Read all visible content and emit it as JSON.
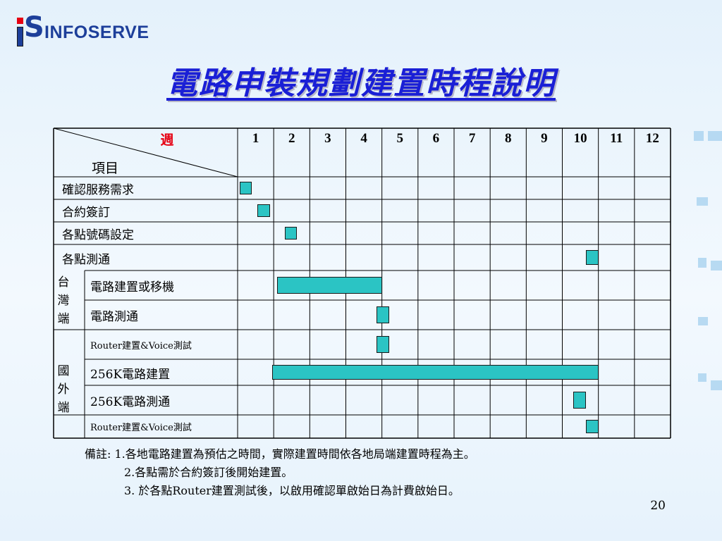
{
  "logo": {
    "text": "INFOSERVE"
  },
  "title": "電路申裝規劃建置時程說明",
  "table": {
    "header_week": "週",
    "header_item": "項目",
    "weeks": [
      "1",
      "2",
      "3",
      "4",
      "5",
      "6",
      "7",
      "8",
      "9",
      "10",
      "11",
      "12"
    ],
    "rows": [
      {
        "label": "確認服務需求",
        "group": "",
        "small": false
      },
      {
        "label": "合約簽訂",
        "group": "",
        "small": false
      },
      {
        "label": "各點號碼設定",
        "group": "",
        "small": false
      },
      {
        "label": "各點測通",
        "group": "",
        "small": false
      },
      {
        "label": "電路建置或移機",
        "group": "taiwan",
        "small": false
      },
      {
        "label": "電路測通",
        "group": "taiwan",
        "small": false
      },
      {
        "label": "Router建置&Voice測試",
        "group": "taiwan",
        "small": true
      },
      {
        "label": "256K電路建置",
        "group": "foreign",
        "small": false
      },
      {
        "label": "256K電路測通",
        "group": "foreign",
        "small": false
      },
      {
        "label": "Router建置&Voice測試",
        "group": "foreign",
        "small": true
      }
    ],
    "groups": {
      "taiwan": [
        "台",
        "灣",
        "端"
      ],
      "foreign": [
        "國",
        "外",
        "端"
      ]
    },
    "schedule": [
      {
        "row": 0,
        "start_week": 0.05,
        "end_week": 0.4
      },
      {
        "row": 1,
        "start_week": 0.55,
        "end_week": 0.9
      },
      {
        "row": 2,
        "start_week": 1.3,
        "end_week": 1.65
      },
      {
        "row": 3,
        "start_week": 9.65,
        "end_week": 10.0
      },
      {
        "row": 4,
        "start_week": 1.1,
        "end_week": 4.0
      },
      {
        "row": 5,
        "start_week": 3.85,
        "end_week": 4.2
      },
      {
        "row": 6,
        "start_week": 3.85,
        "end_week": 4.2
      },
      {
        "row": 7,
        "start_week": 0.95,
        "end_week": 10.0
      },
      {
        "row": 8,
        "start_week": 9.3,
        "end_week": 9.65
      },
      {
        "row": 9,
        "start_week": 9.65,
        "end_week": 10.0
      }
    ]
  },
  "notes": [
    "備註: 1.各地電路建置為預估之時間，實際建置時間依各地局端建置時程為主。",
    "2.各點需於合約簽訂後開始建置。",
    "3. 於各點Router建置測試後，以啟用確認單啟始日為計費啟始日。"
  ],
  "page_number": "20"
}
